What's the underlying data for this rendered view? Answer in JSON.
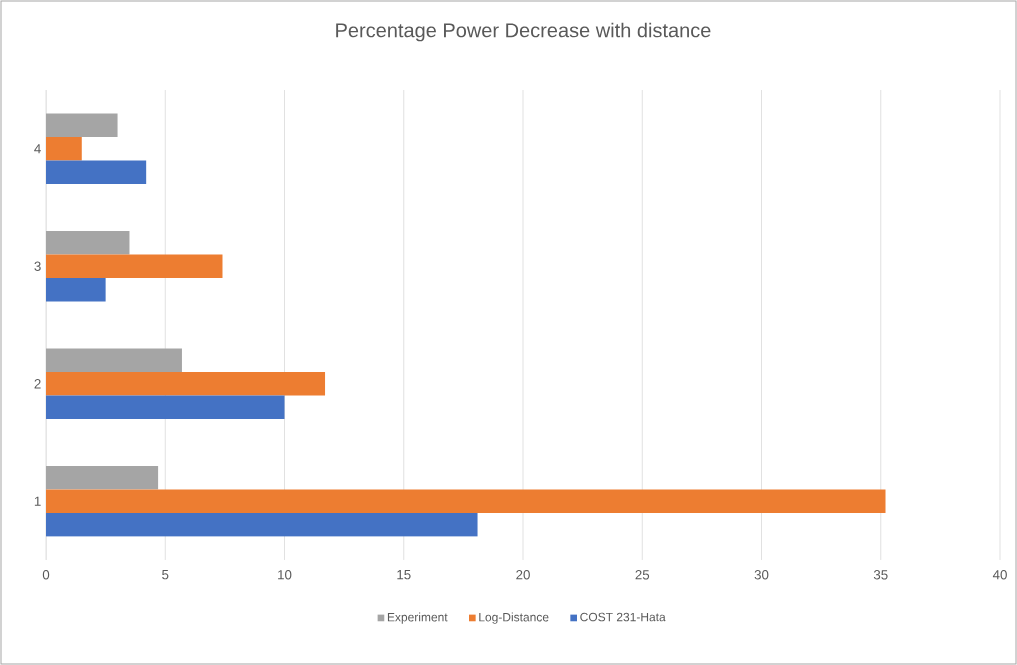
{
  "chart_data": {
    "type": "bar",
    "orientation": "horizontal",
    "title": "Percentage Power Decrease with distance",
    "categories": [
      "4",
      "3",
      "2",
      "1"
    ],
    "series": [
      {
        "name": "Experiment",
        "color": "#a5a5a5",
        "values": [
          3.0,
          3.5,
          5.7,
          4.7
        ]
      },
      {
        "name": "Log-Distance",
        "color": "#ed7d31",
        "values": [
          1.5,
          7.4,
          11.7,
          35.2
        ]
      },
      {
        "name": "COST 231-Hata",
        "color": "#4472c4",
        "values": [
          4.2,
          2.5,
          10.0,
          18.1
        ]
      }
    ],
    "xlim": [
      0,
      40
    ],
    "xticks": [
      0,
      5,
      10,
      15,
      20,
      25,
      30,
      35,
      40
    ],
    "grid": "x",
    "legend": "bottom"
  }
}
